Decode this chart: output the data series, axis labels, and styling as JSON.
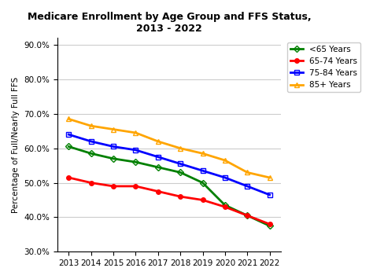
{
  "title": "Medicare Enrollment by Age Group and FFS Status,\n2013 - 2022",
  "ylabel": "Percentage of Full/Nearly Full FFS",
  "years": [
    2013,
    2014,
    2015,
    2016,
    2017,
    2018,
    2019,
    2020,
    2021,
    2022
  ],
  "series": {
    "<65 Years": {
      "values": [
        60.5,
        58.5,
        57.0,
        56.0,
        54.5,
        53.0,
        50.0,
        43.5,
        40.5,
        37.5
      ],
      "color": "#008000",
      "marker": "D",
      "marker_facecolor": "none",
      "marker_edgecolor": "#008000",
      "linewidth": 2
    },
    "65-74 Years": {
      "values": [
        51.5,
        50.0,
        49.0,
        49.0,
        47.5,
        46.0,
        45.0,
        43.0,
        40.5,
        38.0
      ],
      "color": "#ff0000",
      "marker": "o",
      "marker_facecolor": "#ff0000",
      "marker_edgecolor": "#ff0000",
      "linewidth": 2
    },
    "75-84 Years": {
      "values": [
        64.0,
        62.0,
        60.5,
        59.5,
        57.5,
        55.5,
        53.5,
        51.5,
        49.0,
        46.5
      ],
      "color": "#0000ff",
      "marker": "s",
      "marker_facecolor": "none",
      "marker_edgecolor": "#0000ff",
      "linewidth": 2
    },
    "85+ Years": {
      "values": [
        68.5,
        66.5,
        65.5,
        64.5,
        62.0,
        60.0,
        58.5,
        56.5,
        53.0,
        51.5
      ],
      "color": "#ffa500",
      "marker": "^",
      "marker_facecolor": "none",
      "marker_edgecolor": "#ffa500",
      "linewidth": 2
    }
  },
  "ylim": [
    30.0,
    92.0
  ],
  "yticks": [
    30.0,
    40.0,
    50.0,
    60.0,
    70.0,
    80.0,
    90.0
  ],
  "xlim": [
    2012.5,
    2022.5
  ],
  "background_color": "#ffffff",
  "grid_color": "#cccccc",
  "title_fontsize": 9,
  "axis_label_fontsize": 7.5,
  "tick_fontsize": 7.5,
  "legend_fontsize": 7.5
}
